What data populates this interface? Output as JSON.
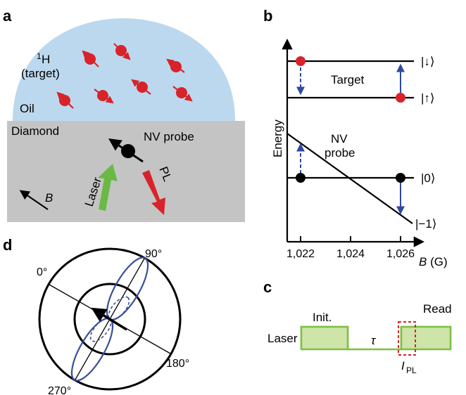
{
  "panels": {
    "a": {
      "letter": "a",
      "hydrogen_superscript": "1",
      "hydrogen_symbol": "H",
      "target_label": "(target)",
      "oil_label": "Oil",
      "diamond_label": "Diamond",
      "nv_probe_label": "NV probe",
      "laser_label": "Laser",
      "pl_label": "PL",
      "b_label": "B",
      "colors": {
        "oil": "#bcd8ee",
        "diamond": "#c4c4c4",
        "spin": "#d8232a",
        "laser": "#6ab944",
        "pl": "#d8232a"
      }
    },
    "b": {
      "letter": "b",
      "ylabel": "Energy",
      "xlabel_symbol": "B",
      "xlabel_unit": " (G)",
      "target_label": "Target",
      "nv_label_line1": "NV",
      "nv_label_line2": "probe",
      "state_down": "|↓⟩",
      "state_up": "|↑⟩",
      "state_zero": "|0⟩",
      "state_minus_one": "|−1⟩",
      "x_ticks": [
        "1,022",
        "1,024",
        "1,026"
      ],
      "colors": {
        "arrow": "#2e4a9e",
        "target_dot": "#d8232a"
      }
    },
    "c": {
      "letter": "c",
      "laser_label": "Laser",
      "init_label": "Init.",
      "tau_label": "τ",
      "read_label": "Read",
      "ipl_symbol": "I",
      "ipl_subscript": "PL",
      "colors": {
        "pulse_fill": "#cfe4a8",
        "pulse_line": "#7cc043",
        "read_box": "#d8232a"
      }
    },
    "d": {
      "letter": "d",
      "angle_labels": [
        "0°",
        "90°",
        "180°",
        "270°"
      ],
      "colors": {
        "lobe": "#3a4f9a"
      }
    }
  }
}
